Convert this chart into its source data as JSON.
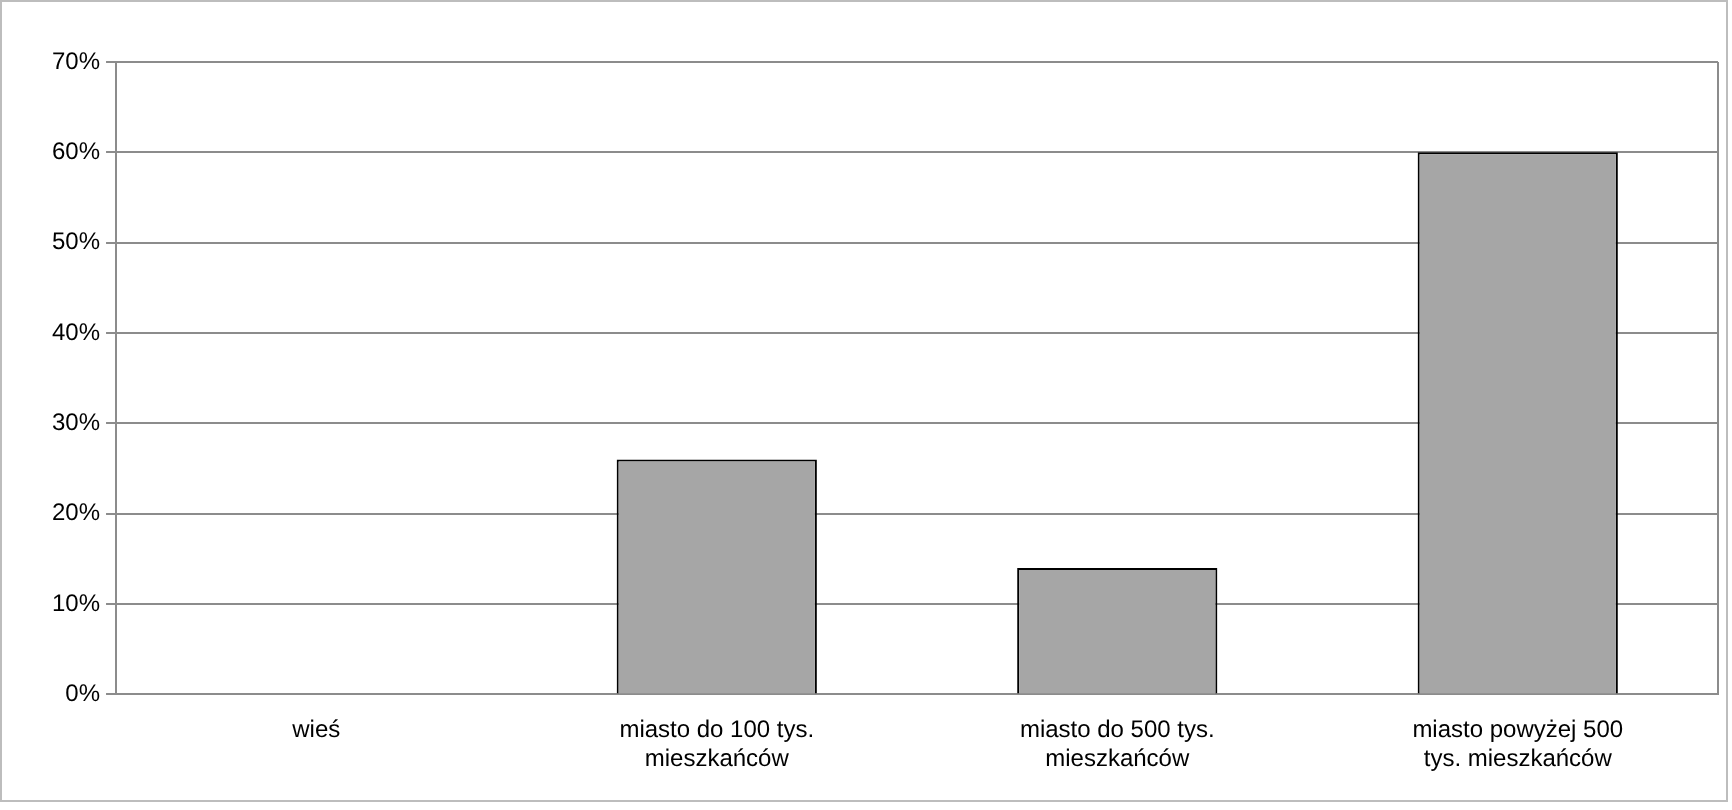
{
  "chart_data": {
    "type": "bar",
    "categories": [
      "wieś",
      "miasto do 100 tys. mieszkańców",
      "miasto do 500 tys. mieszkańców",
      "miasto powyżej 500 tys. mieszkańców"
    ],
    "values": [
      0,
      26,
      14,
      60
    ],
    "color": "#a6a6a6",
    "ylim": [
      0,
      70
    ],
    "yticks": [
      {
        "value": 0,
        "label": "0%"
      },
      {
        "value": 10,
        "label": "10%"
      },
      {
        "value": 20,
        "label": "20%"
      },
      {
        "value": 30,
        "label": "30%"
      },
      {
        "value": 40,
        "label": "40%"
      },
      {
        "value": 50,
        "label": "50%"
      },
      {
        "value": 60,
        "label": "60%"
      },
      {
        "value": 70,
        "label": "70%"
      }
    ],
    "grid": "y",
    "legend": false
  }
}
